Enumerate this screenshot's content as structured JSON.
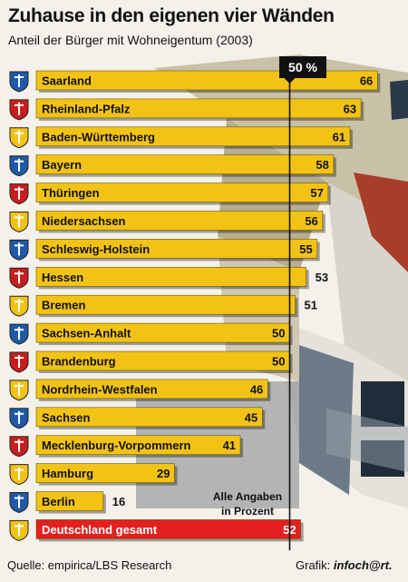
{
  "title": "Zuhause in den eigenen vier Wänden",
  "subtitle": "Anteil der Bürger mit Wohneigentum (2003)",
  "reference_label": "50 %",
  "footnote_line1": "Alle Angaben",
  "footnote_line2": "in Prozent",
  "source": "Quelle: empirica/LBS Research",
  "credit_prefix": "Grafik: ",
  "credit_brand": "infoch@rt.",
  "colors": {
    "bar": "#f2c314",
    "bar_highlight": "#e3201f",
    "reference_line": "#111111"
  },
  "chart_data": {
    "type": "bar",
    "orientation": "horizontal",
    "categories": [
      "Saarland",
      "Rheinland-Pfalz",
      "Baden-Württemberg",
      "Bayern",
      "Thüringen",
      "Niedersachsen",
      "Schleswig-Holstein",
      "Hessen",
      "Bremen",
      "Sachsen-Anhalt",
      "Brandenburg",
      "Nordrhein-Westfalen",
      "Sachsen",
      "Mecklenburg-Vorpommern",
      "Hamburg",
      "Berlin",
      "Deutschland gesamt"
    ],
    "values": [
      66,
      63,
      61,
      58,
      57,
      56,
      55,
      53,
      51,
      50,
      50,
      46,
      45,
      41,
      29,
      16,
      52
    ],
    "unit": "%",
    "reference_line": 50,
    "highlight_category": "Deutschland gesamt",
    "xlim": [
      0,
      70
    ],
    "grid": false,
    "legend": "none"
  }
}
